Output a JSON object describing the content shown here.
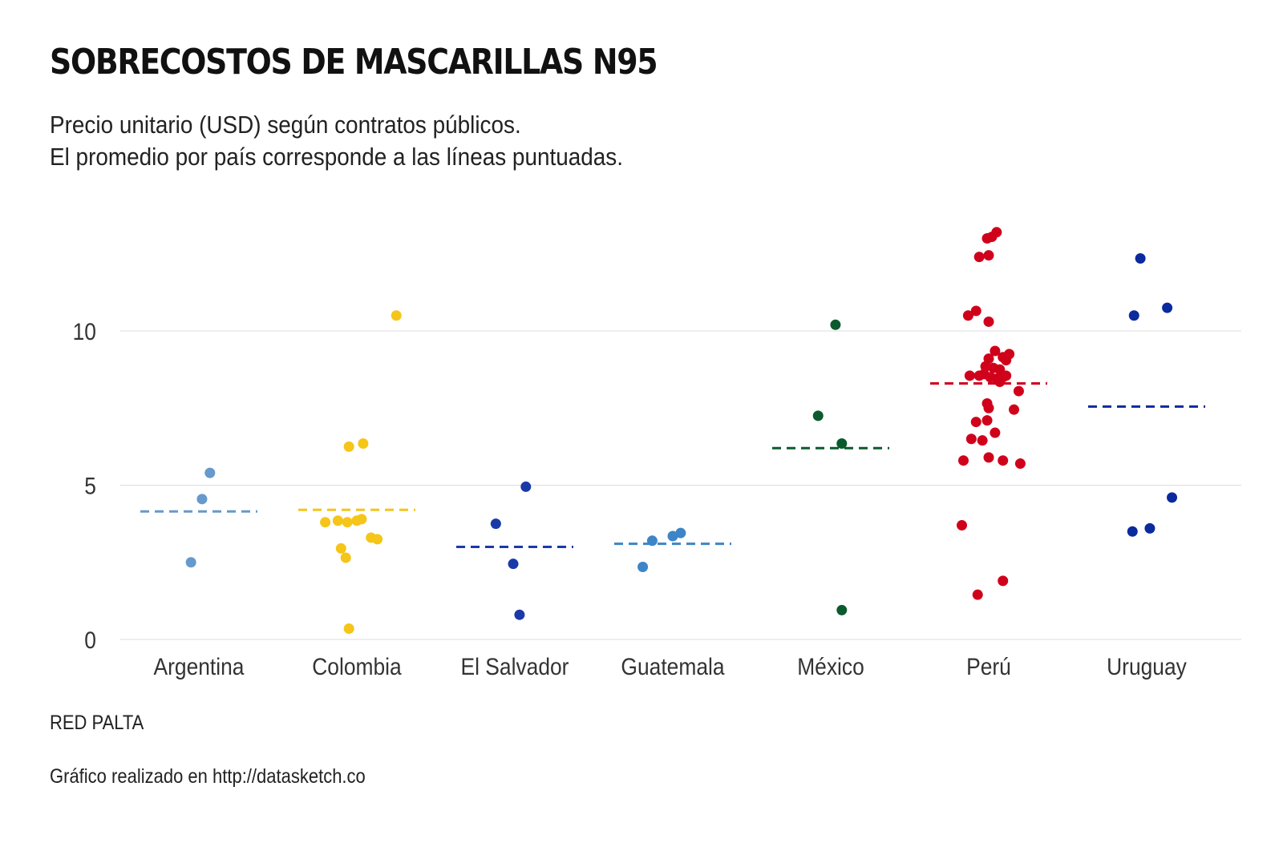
{
  "chart_data": {
    "type": "scatter",
    "title": "SOBRECOSTOS DE MASCARILLAS N95",
    "subtitle": [
      "Precio unitario (USD) según contratos públicos.",
      "El promedio por país corresponde a las líneas puntuadas."
    ],
    "xlabel": "",
    "ylabel": "",
    "ylim": [
      0,
      13.5
    ],
    "yticks": [
      0,
      5,
      10
    ],
    "grid": true,
    "categories": [
      "Argentina",
      "Colombia",
      "El Salvador",
      "Guatemala",
      "México",
      "Perú",
      "Uruguay"
    ],
    "series": [
      {
        "category": "Argentina",
        "color": "#6699cc",
        "mean": 4.15,
        "points": [
          {
            "jitter": -0.05,
            "value": 2.5
          },
          {
            "jitter": 0.02,
            "value": 4.55
          },
          {
            "jitter": 0.07,
            "value": 5.4
          }
        ]
      },
      {
        "category": "Colombia",
        "color": "#f5c518",
        "mean": 4.2,
        "points": [
          {
            "jitter": -0.05,
            "value": 6.25
          },
          {
            "jitter": 0.04,
            "value": 6.35
          },
          {
            "jitter": 0.25,
            "value": 10.5
          },
          {
            "jitter": -0.2,
            "value": 3.8
          },
          {
            "jitter": -0.12,
            "value": 3.85
          },
          {
            "jitter": -0.06,
            "value": 3.8
          },
          {
            "jitter": 0.0,
            "value": 3.85
          },
          {
            "jitter": 0.03,
            "value": 3.9
          },
          {
            "jitter": 0.09,
            "value": 3.3
          },
          {
            "jitter": 0.13,
            "value": 3.25
          },
          {
            "jitter": -0.1,
            "value": 2.95
          },
          {
            "jitter": -0.07,
            "value": 2.65
          },
          {
            "jitter": -0.05,
            "value": 0.35
          }
        ]
      },
      {
        "category": "El Salvador",
        "color": "#1a3aa8",
        "mean": 3.0,
        "points": [
          {
            "jitter": 0.07,
            "value": 4.95
          },
          {
            "jitter": -0.12,
            "value": 3.75
          },
          {
            "jitter": -0.01,
            "value": 2.45
          },
          {
            "jitter": 0.03,
            "value": 0.8
          }
        ]
      },
      {
        "category": "Guatemala",
        "color": "#3d85c6",
        "mean": 3.1,
        "points": [
          {
            "jitter": -0.19,
            "value": 2.35
          },
          {
            "jitter": -0.13,
            "value": 3.2
          },
          {
            "jitter": 0.0,
            "value": 3.35
          },
          {
            "jitter": 0.05,
            "value": 3.45
          }
        ]
      },
      {
        "category": "México",
        "color": "#0b5a2e",
        "mean": 6.2,
        "points": [
          {
            "jitter": 0.03,
            "value": 10.2
          },
          {
            "jitter": -0.08,
            "value": 7.25
          },
          {
            "jitter": 0.07,
            "value": 6.35
          },
          {
            "jitter": 0.07,
            "value": 0.95
          }
        ]
      },
      {
        "category": "Perú",
        "color": "#d0021b",
        "mean": 8.3,
        "points": [
          {
            "jitter": 0.05,
            "value": 13.2
          },
          {
            "jitter": -0.01,
            "value": 13.0
          },
          {
            "jitter": 0.02,
            "value": 13.05
          },
          {
            "jitter": -0.06,
            "value": 12.4
          },
          {
            "jitter": 0.0,
            "value": 12.45
          },
          {
            "jitter": -0.13,
            "value": 10.5
          },
          {
            "jitter": -0.08,
            "value": 10.65
          },
          {
            "jitter": 0.0,
            "value": 10.3
          },
          {
            "jitter": 0.04,
            "value": 9.35
          },
          {
            "jitter": 0.13,
            "value": 9.25
          },
          {
            "jitter": 0.09,
            "value": 9.15
          },
          {
            "jitter": 0.11,
            "value": 9.05
          },
          {
            "jitter": 0.0,
            "value": 9.1
          },
          {
            "jitter": -0.02,
            "value": 8.85
          },
          {
            "jitter": 0.03,
            "value": 8.8
          },
          {
            "jitter": 0.07,
            "value": 8.75
          },
          {
            "jitter": -0.12,
            "value": 8.55
          },
          {
            "jitter": -0.06,
            "value": 8.55
          },
          {
            "jitter": -0.03,
            "value": 8.6
          },
          {
            "jitter": 0.01,
            "value": 8.5
          },
          {
            "jitter": 0.05,
            "value": 8.45
          },
          {
            "jitter": 0.09,
            "value": 8.5
          },
          {
            "jitter": 0.11,
            "value": 8.55
          },
          {
            "jitter": 0.07,
            "value": 8.35
          },
          {
            "jitter": 0.19,
            "value": 8.05
          },
          {
            "jitter": -0.01,
            "value": 7.65
          },
          {
            "jitter": 0.0,
            "value": 7.5
          },
          {
            "jitter": 0.16,
            "value": 7.45
          },
          {
            "jitter": -0.08,
            "value": 7.05
          },
          {
            "jitter": -0.01,
            "value": 7.1
          },
          {
            "jitter": 0.04,
            "value": 6.7
          },
          {
            "jitter": -0.11,
            "value": 6.5
          },
          {
            "jitter": -0.04,
            "value": 6.45
          },
          {
            "jitter": -0.16,
            "value": 5.8
          },
          {
            "jitter": 0.0,
            "value": 5.9
          },
          {
            "jitter": 0.09,
            "value": 5.8
          },
          {
            "jitter": 0.2,
            "value": 5.7
          },
          {
            "jitter": -0.17,
            "value": 3.7
          },
          {
            "jitter": 0.09,
            "value": 1.9
          },
          {
            "jitter": -0.07,
            "value": 1.45
          }
        ]
      },
      {
        "category": "Uruguay",
        "color": "#0a2a9e",
        "mean": 7.55,
        "points": [
          {
            "jitter": -0.04,
            "value": 12.35
          },
          {
            "jitter": 0.13,
            "value": 10.75
          },
          {
            "jitter": -0.08,
            "value": 10.5
          },
          {
            "jitter": 0.16,
            "value": 4.6
          },
          {
            "jitter": 0.02,
            "value": 3.6
          },
          {
            "jitter": -0.09,
            "value": 3.5
          }
        ]
      }
    ]
  },
  "source": "RED PALTA",
  "credit": "Gráfico realizado en http://datasketch.co"
}
